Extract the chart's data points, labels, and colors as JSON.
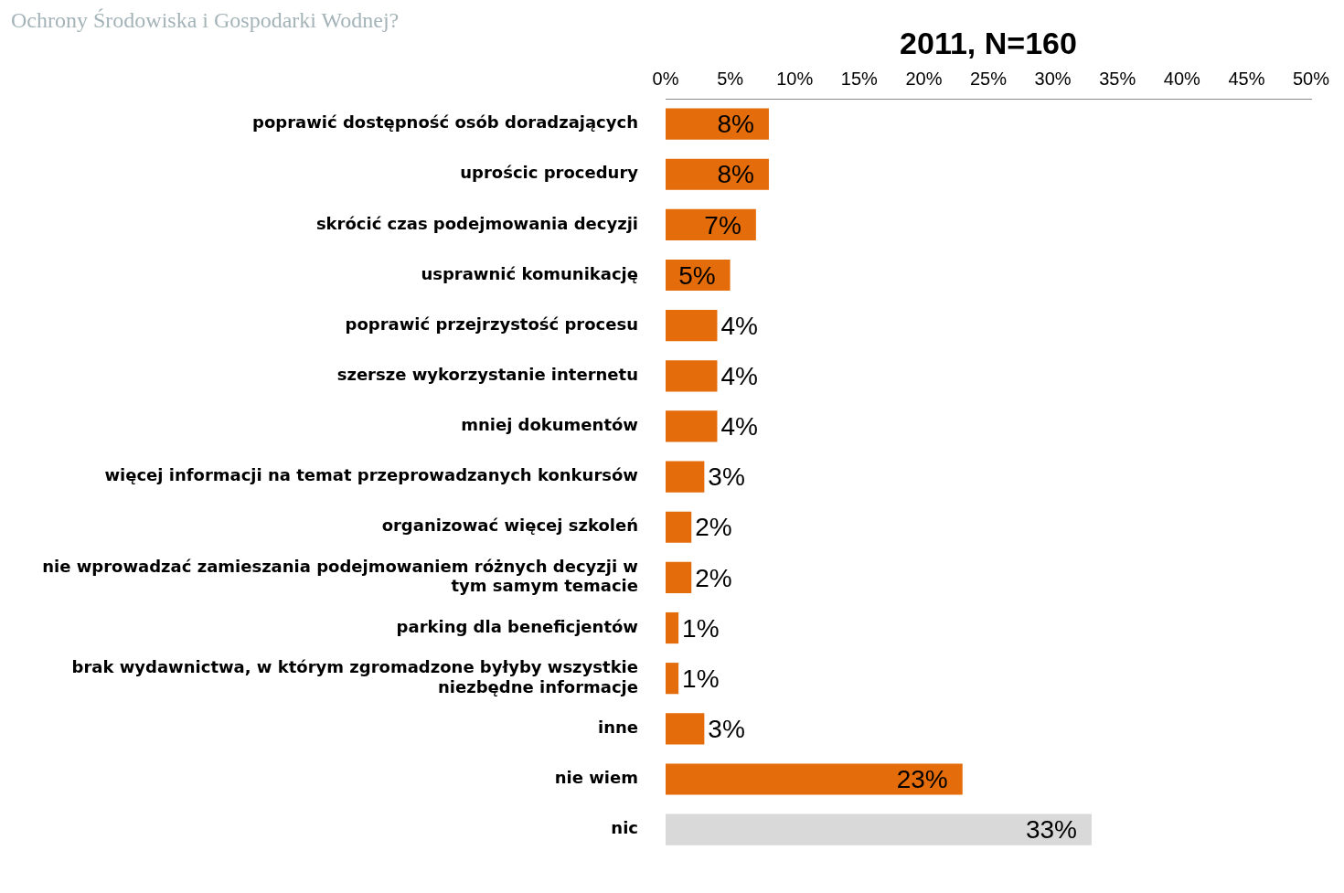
{
  "chart_data": {
    "type": "bar",
    "orientation": "horizontal",
    "title": "2011, N=160",
    "annotations": [
      "Ochrony Środowiska i Gospodarki Wodnej?"
    ],
    "categories": [
      "poprawić dostępność osób doradzających",
      "uprościc procedury",
      "skrócić czas podejmowania decyzji",
      "usprawnić komunikację",
      "poprawić przejrzystość procesu",
      "szersze wykorzystanie internetu",
      "mniej dokumentów",
      "więcej informacji na temat przeprowadzanych konkursów",
      "organizować więcej szkoleń",
      "nie wprowadzać zamieszania podejmowaniem różnych decyzji w tym samym temacie",
      "parking dla beneficjentów",
      "brak wydawnictwa, w którym zgromadzone byłyby wszystkie niezbędne informacje",
      "inne",
      "nie wiem",
      "nic"
    ],
    "values": [
      8,
      8,
      7,
      5,
      4,
      4,
      4,
      3,
      2,
      2,
      1,
      1,
      3,
      23,
      33
    ],
    "colors": [
      "#e46c0a",
      "#e46c0a",
      "#e46c0a",
      "#e46c0a",
      "#e46c0a",
      "#e46c0a",
      "#e46c0a",
      "#e46c0a",
      "#e46c0a",
      "#e46c0a",
      "#e46c0a",
      "#e46c0a",
      "#e46c0a",
      "#e46c0a",
      "#d9d9d9"
    ],
    "value_labels": [
      "8%",
      "8%",
      "7%",
      "5%",
      "4%",
      "4%",
      "4%",
      "3%",
      "2%",
      "2%",
      "1%",
      "1%",
      "3%",
      "23%",
      "33%"
    ],
    "xlim": [
      0,
      50
    ],
    "xticks": [
      {
        "value": 0,
        "label": "0%"
      },
      {
        "value": 5,
        "label": "5%"
      },
      {
        "value": 10,
        "label": "10%"
      },
      {
        "value": 15,
        "label": "15%"
      },
      {
        "value": 20,
        "label": "20%"
      },
      {
        "value": 25,
        "label": "25%"
      },
      {
        "value": 30,
        "label": "30%"
      },
      {
        "value": 35,
        "label": "35%"
      },
      {
        "value": 40,
        "label": "40%"
      },
      {
        "value": 45,
        "label": "45%"
      },
      {
        "value": 50,
        "label": "50%"
      }
    ],
    "grid": false,
    "legend": false
  }
}
